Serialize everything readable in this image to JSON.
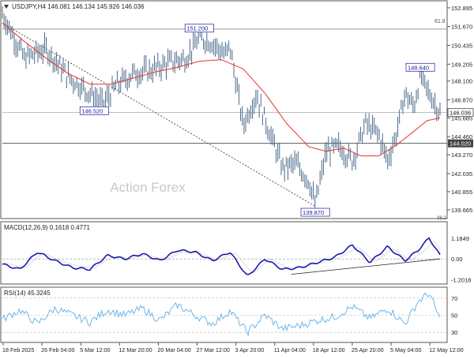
{
  "chart_data": [
    {
      "type": "line",
      "panel": "price",
      "title": "USDJPY,H4  146.081 146.134 145.926 146.036",
      "watermark": "Action Forex",
      "ylim": [
        139.2,
        153.2
      ],
      "price_ticks": [
        "152.895",
        "151.670",
        "150.435",
        "149.205",
        "148.100",
        "146.870",
        "145.685",
        "144.460",
        "143.270",
        "142.035",
        "140.855",
        "139.665"
      ],
      "price_tick_values": [
        152.895,
        151.67,
        150.435,
        149.205,
        148.1,
        146.87,
        145.685,
        144.46,
        143.27,
        142.035,
        140.855,
        139.665
      ],
      "current_price": {
        "label": "146.036",
        "value": 146.036
      },
      "level_line": {
        "label": "144.020",
        "value": 144.02
      },
      "fib_label": "61.8",
      "fib_value": 151.5,
      "bottom_edge_label": "38.2",
      "annotations": [
        {
          "label": "151.200",
          "x": 0.45,
          "y": 151.2
        },
        {
          "label": "146.520",
          "x": 0.21,
          "y": 146.52
        },
        {
          "label": "139.870",
          "x": 0.715,
          "y": 139.87
        },
        {
          "label": "148.640",
          "x": 0.955,
          "y": 148.64
        }
      ],
      "trend_line": {
        "from": [
          0.0,
          151.9
        ],
        "to": [
          0.715,
          139.9
        ]
      },
      "series": [
        {
          "name": "",
          "style": "bars",
          "color": "#4a6a8a",
          "x": [
            0.0,
            0.05,
            0.1,
            0.15,
            0.2,
            0.23,
            0.26,
            0.3,
            0.34,
            0.38,
            0.42,
            0.45,
            0.48,
            0.51,
            0.52,
            0.55,
            0.58,
            0.61,
            0.64,
            0.67,
            0.7,
            0.715,
            0.74,
            0.77,
            0.8,
            0.83,
            0.86,
            0.88,
            0.9,
            0.92,
            0.94,
            0.955,
            0.975,
            1.0
          ],
          "values": [
            152.5,
            149.6,
            150.2,
            148.4,
            147.3,
            146.6,
            147.8,
            148.6,
            148.8,
            149.3,
            149.6,
            150.9,
            150.6,
            149.8,
            150.4,
            145.2,
            147.2,
            144.8,
            142.4,
            142.7,
            141.6,
            140.0,
            143.5,
            143.8,
            142.9,
            145.3,
            144.6,
            142.9,
            144.6,
            147.3,
            146.4,
            148.4,
            147.3,
            146.04
          ]
        },
        {
          "name": "",
          "style": "line",
          "color": "#e83030",
          "x": [
            0.0,
            0.05,
            0.1,
            0.15,
            0.2,
            0.25,
            0.3,
            0.35,
            0.4,
            0.45,
            0.5,
            0.55,
            0.6,
            0.65,
            0.7,
            0.74,
            0.78,
            0.82,
            0.86,
            0.9,
            0.94,
            0.97,
            1.0
          ],
          "values": [
            151.9,
            150.7,
            149.6,
            148.6,
            147.9,
            147.9,
            148.3,
            148.7,
            149.0,
            149.4,
            149.5,
            148.9,
            147.3,
            145.3,
            143.8,
            143.5,
            143.7,
            143.2,
            143.2,
            143.9,
            144.8,
            145.5,
            145.7
          ]
        }
      ],
      "xlabels": [
        "18 Feb 2025",
        "26 Feb 04:00",
        "5 Mar 12:00",
        "12 Mar 20:00",
        "20 Mar 04:00",
        "27 Mar 12:00",
        "3 Apr 20:00",
        "11 Apr 04:00",
        "18 Apr 12:00",
        "25 Apr 20:00",
        "5 May 04:00",
        "12 May 12:00"
      ]
    },
    {
      "type": "line",
      "panel": "macd",
      "title": "MACD(12,26,9) 0.1618 0.4771",
      "ylim": [
        -1.35,
        2.0
      ],
      "ticks": [
        "1.1849",
        "0.00",
        "-1.2018"
      ],
      "tick_values": [
        1.1849,
        0.0,
        -1.2018
      ],
      "trend_line": {
        "from": [
          0.66,
          -0.88
        ],
        "to": [
          1.0,
          0.0
        ]
      },
      "series": [
        {
          "name": "",
          "color": "#1a1ab0",
          "x": [
            0.0,
            0.04,
            0.08,
            0.12,
            0.16,
            0.2,
            0.24,
            0.28,
            0.32,
            0.36,
            0.4,
            0.44,
            0.48,
            0.52,
            0.56,
            0.6,
            0.64,
            0.68,
            0.72,
            0.76,
            0.8,
            0.84,
            0.88,
            0.92,
            0.95,
            0.975,
            1.0
          ],
          "values": [
            -0.3,
            -0.6,
            0.4,
            -0.1,
            -0.5,
            -0.6,
            0.2,
            0.0,
            0.3,
            -0.1,
            0.5,
            0.4,
            -0.1,
            0.4,
            -1.0,
            0.0,
            -0.6,
            -0.5,
            -0.2,
            0.1,
            0.8,
            -0.2,
            0.7,
            -0.1,
            0.5,
            1.2,
            0.2
          ]
        }
      ]
    },
    {
      "type": "line",
      "panel": "rsi",
      "title": "RSI(14) 45.3245",
      "ylim": [
        20,
        80
      ],
      "ticks": [
        "70",
        "50",
        "30"
      ],
      "tick_values": [
        70,
        50,
        30
      ],
      "series": [
        {
          "name": "",
          "color": "#5fb0e8",
          "x": [
            0.0,
            0.04,
            0.08,
            0.12,
            0.16,
            0.2,
            0.24,
            0.28,
            0.32,
            0.36,
            0.4,
            0.44,
            0.48,
            0.52,
            0.56,
            0.6,
            0.64,
            0.68,
            0.72,
            0.76,
            0.8,
            0.84,
            0.88,
            0.92,
            0.95,
            0.975,
            1.0
          ],
          "values": [
            45,
            56,
            40,
            58,
            50,
            42,
            56,
            50,
            58,
            44,
            62,
            50,
            40,
            55,
            30,
            50,
            34,
            38,
            44,
            48,
            60,
            46,
            58,
            40,
            66,
            76,
            45
          ]
        }
      ]
    }
  ]
}
